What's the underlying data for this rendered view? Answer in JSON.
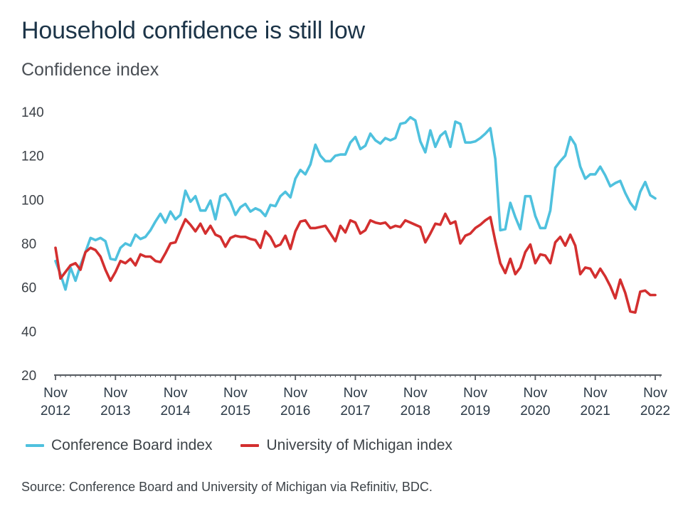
{
  "title": "Household confidence is still low",
  "subtitle": "Confidence index",
  "source": "Source: Conference Board and University of Michigan via Refinitiv, BDC.",
  "colors": {
    "conference_board": "#4fc1de",
    "michigan": "#d32f2f",
    "axis": "#555a60"
  },
  "chart_data": {
    "type": "line",
    "title": "Household confidence is still low",
    "ylabel": "Confidence index",
    "xlabel": "",
    "ylim": [
      20,
      140
    ],
    "yticks": [
      20,
      40,
      60,
      80,
      100,
      120,
      140
    ],
    "x_start": "2012-11",
    "x_end": "2022-12",
    "xtick_labels": [
      {
        "month": "Nov",
        "year": "2012"
      },
      {
        "month": "Nov",
        "year": "2013"
      },
      {
        "month": "Nov",
        "year": "2014"
      },
      {
        "month": "Nov",
        "year": "2015"
      },
      {
        "month": "Nov",
        "year": "2016"
      },
      {
        "month": "Nov",
        "year": "2017"
      },
      {
        "month": "Nov",
        "year": "2018"
      },
      {
        "month": "Nov",
        "year": "2019"
      },
      {
        "month": "Nov",
        "year": "2020"
      },
      {
        "month": "Nov",
        "year": "2021"
      },
      {
        "month": "Nov",
        "year": "2022"
      }
    ],
    "grid": false,
    "legend_position": "bottom",
    "series": [
      {
        "name": "Conference Board index",
        "color": "#4fc1de",
        "points": [
          [
            "2012-11",
            72
          ],
          [
            "2012-12",
            66
          ],
          [
            "2013-01",
            59
          ],
          [
            "2013-02",
            69
          ],
          [
            "2013-03",
            63
          ],
          [
            "2013-04",
            70
          ],
          [
            "2013-05",
            76
          ],
          [
            "2013-06",
            82.5
          ],
          [
            "2013-07",
            81.5
          ],
          [
            "2013-08",
            82.5
          ],
          [
            "2013-09",
            81
          ],
          [
            "2013-10",
            73
          ],
          [
            "2013-11",
            72.5
          ],
          [
            "2013-12",
            78
          ],
          [
            "2014-01",
            80
          ],
          [
            "2014-02",
            79
          ],
          [
            "2014-03",
            84
          ],
          [
            "2014-04",
            82
          ],
          [
            "2014-05",
            83
          ],
          [
            "2014-06",
            86
          ],
          [
            "2014-07",
            90
          ],
          [
            "2014-08",
            93.5
          ],
          [
            "2014-09",
            89.5
          ],
          [
            "2014-10",
            94.5
          ],
          [
            "2014-11",
            91
          ],
          [
            "2014-12",
            93
          ],
          [
            "2015-01",
            104
          ],
          [
            "2015-02",
            99
          ],
          [
            "2015-03",
            101.5
          ],
          [
            "2015-04",
            95
          ],
          [
            "2015-05",
            95
          ],
          [
            "2015-06",
            99.5
          ],
          [
            "2015-07",
            91
          ],
          [
            "2015-08",
            101.5
          ],
          [
            "2015-09",
            102.5
          ],
          [
            "2015-10",
            99
          ],
          [
            "2015-11",
            93
          ],
          [
            "2015-12",
            96.5
          ],
          [
            "2016-01",
            98
          ],
          [
            "2016-02",
            94.5
          ],
          [
            "2016-03",
            96
          ],
          [
            "2016-04",
            95
          ],
          [
            "2016-05",
            92.5
          ],
          [
            "2016-06",
            97.5
          ],
          [
            "2016-07",
            97
          ],
          [
            "2016-08",
            101.5
          ],
          [
            "2016-09",
            103.5
          ],
          [
            "2016-10",
            101
          ],
          [
            "2016-11",
            109.5
          ],
          [
            "2016-12",
            113.5
          ],
          [
            "2017-01",
            111.5
          ],
          [
            "2017-02",
            116
          ],
          [
            "2017-03",
            125
          ],
          [
            "2017-04",
            120
          ],
          [
            "2017-05",
            117.5
          ],
          [
            "2017-06",
            117.5
          ],
          [
            "2017-07",
            120
          ],
          [
            "2017-08",
            120.5
          ],
          [
            "2017-09",
            120.5
          ],
          [
            "2017-10",
            126
          ],
          [
            "2017-11",
            128.5
          ],
          [
            "2017-12",
            123
          ],
          [
            "2018-01",
            124.5
          ],
          [
            "2018-02",
            130
          ],
          [
            "2018-03",
            127
          ],
          [
            "2018-04",
            125.5
          ],
          [
            "2018-05",
            128
          ],
          [
            "2018-06",
            127
          ],
          [
            "2018-07",
            128
          ],
          [
            "2018-08",
            134.5
          ],
          [
            "2018-09",
            135
          ],
          [
            "2018-10",
            137.5
          ],
          [
            "2018-11",
            136
          ],
          [
            "2018-12",
            126.5
          ],
          [
            "2019-01",
            121.5
          ],
          [
            "2019-02",
            131.5
          ],
          [
            "2019-03",
            124
          ],
          [
            "2019-04",
            129
          ],
          [
            "2019-05",
            131
          ],
          [
            "2019-06",
            124
          ],
          [
            "2019-07",
            135.5
          ],
          [
            "2019-08",
            134.5
          ],
          [
            "2019-09",
            126
          ],
          [
            "2019-10",
            126
          ],
          [
            "2019-11",
            126.5
          ],
          [
            "2019-12",
            128
          ],
          [
            "2020-01",
            130
          ],
          [
            "2020-02",
            132.5
          ],
          [
            "2020-03",
            118.5
          ],
          [
            "2020-04",
            86
          ],
          [
            "2020-05",
            86.5
          ],
          [
            "2020-06",
            98.5
          ],
          [
            "2020-07",
            92
          ],
          [
            "2020-08",
            86.5
          ],
          [
            "2020-09",
            101.5
          ],
          [
            "2020-10",
            101.5
          ],
          [
            "2020-11",
            92.5
          ],
          [
            "2020-12",
            87
          ],
          [
            "2021-01",
            87
          ],
          [
            "2021-02",
            95
          ],
          [
            "2021-03",
            114.5
          ],
          [
            "2021-04",
            117.5
          ],
          [
            "2021-05",
            120
          ],
          [
            "2021-06",
            128.5
          ],
          [
            "2021-07",
            125
          ],
          [
            "2021-08",
            115
          ],
          [
            "2021-09",
            109.5
          ],
          [
            "2021-10",
            111.5
          ],
          [
            "2021-11",
            111.5
          ],
          [
            "2021-12",
            115
          ],
          [
            "2022-01",
            111
          ],
          [
            "2022-02",
            106
          ],
          [
            "2022-03",
            107.5
          ],
          [
            "2022-04",
            108.5
          ],
          [
            "2022-05",
            103
          ],
          [
            "2022-06",
            98.5
          ],
          [
            "2022-07",
            95.5
          ],
          [
            "2022-08",
            103.5
          ],
          [
            "2022-09",
            108
          ],
          [
            "2022-10",
            102
          ],
          [
            "2022-11",
            100.5
          ]
        ]
      },
      {
        "name": "University of Michigan index",
        "color": "#d32f2f",
        "points": [
          [
            "2012-11",
            78
          ],
          [
            "2012-12",
            64
          ],
          [
            "2013-01",
            67
          ],
          [
            "2013-02",
            70
          ],
          [
            "2013-03",
            71
          ],
          [
            "2013-04",
            68
          ],
          [
            "2013-05",
            76
          ],
          [
            "2013-06",
            78
          ],
          [
            "2013-07",
            77
          ],
          [
            "2013-08",
            74
          ],
          [
            "2013-09",
            68
          ],
          [
            "2013-10",
            63
          ],
          [
            "2013-11",
            67
          ],
          [
            "2013-12",
            72
          ],
          [
            "2014-01",
            71
          ],
          [
            "2014-02",
            73
          ],
          [
            "2014-03",
            70
          ],
          [
            "2014-04",
            75
          ],
          [
            "2014-05",
            74
          ],
          [
            "2014-06",
            74
          ],
          [
            "2014-07",
            72
          ],
          [
            "2014-08",
            71.5
          ],
          [
            "2014-09",
            75.5
          ],
          [
            "2014-10",
            80
          ],
          [
            "2014-11",
            80.5
          ],
          [
            "2014-12",
            86
          ],
          [
            "2015-01",
            91
          ],
          [
            "2015-02",
            88.5
          ],
          [
            "2015-03",
            85.5
          ],
          [
            "2015-04",
            89
          ],
          [
            "2015-05",
            84.5
          ],
          [
            "2015-06",
            88
          ],
          [
            "2015-07",
            84
          ],
          [
            "2015-08",
            83
          ],
          [
            "2015-09",
            78.5
          ],
          [
            "2015-10",
            82.5
          ],
          [
            "2015-11",
            83.5
          ],
          [
            "2015-12",
            83
          ],
          [
            "2016-01",
            83
          ],
          [
            "2016-02",
            82
          ],
          [
            "2016-03",
            81.5
          ],
          [
            "2016-04",
            78
          ],
          [
            "2016-05",
            85.5
          ],
          [
            "2016-06",
            83
          ],
          [
            "2016-07",
            78.5
          ],
          [
            "2016-08",
            79.5
          ],
          [
            "2016-09",
            83.5
          ],
          [
            "2016-10",
            77.5
          ],
          [
            "2016-11",
            85.5
          ],
          [
            "2016-12",
            90
          ],
          [
            "2017-01",
            90.5
          ],
          [
            "2017-02",
            87
          ],
          [
            "2017-03",
            87
          ],
          [
            "2017-04",
            87.5
          ],
          [
            "2017-05",
            88
          ],
          [
            "2017-06",
            84.5
          ],
          [
            "2017-07",
            81
          ],
          [
            "2017-08",
            88
          ],
          [
            "2017-09",
            85
          ],
          [
            "2017-10",
            90.5
          ],
          [
            "2017-11",
            89.5
          ],
          [
            "2017-12",
            84.5
          ],
          [
            "2018-01",
            86
          ],
          [
            "2018-02",
            90.5
          ],
          [
            "2018-03",
            89.5
          ],
          [
            "2018-04",
            89
          ],
          [
            "2018-05",
            89.5
          ],
          [
            "2018-06",
            87
          ],
          [
            "2018-07",
            88
          ],
          [
            "2018-08",
            87.5
          ],
          [
            "2018-09",
            90.5
          ],
          [
            "2018-10",
            89.5
          ],
          [
            "2018-11",
            88.5
          ],
          [
            "2018-12",
            87.5
          ],
          [
            "2019-01",
            80.5
          ],
          [
            "2019-02",
            84.5
          ],
          [
            "2019-03",
            89
          ],
          [
            "2019-04",
            88.5
          ],
          [
            "2019-05",
            93.5
          ],
          [
            "2019-06",
            89
          ],
          [
            "2019-07",
            90
          ],
          [
            "2019-08",
            80
          ],
          [
            "2019-09",
            83.5
          ],
          [
            "2019-10",
            84.5
          ],
          [
            "2019-11",
            87
          ],
          [
            "2019-12",
            88.5
          ],
          [
            "2020-01",
            90.5
          ],
          [
            "2020-02",
            92
          ],
          [
            "2020-03",
            81
          ],
          [
            "2020-04",
            71
          ],
          [
            "2020-05",
            66.5
          ],
          [
            "2020-06",
            73
          ],
          [
            "2020-07",
            66
          ],
          [
            "2020-08",
            69
          ],
          [
            "2020-09",
            76
          ],
          [
            "2020-10",
            79.5
          ],
          [
            "2020-11",
            71
          ],
          [
            "2020-12",
            75
          ],
          [
            "2021-01",
            74.5
          ],
          [
            "2021-02",
            71
          ],
          [
            "2021-03",
            80.5
          ],
          [
            "2021-04",
            83
          ],
          [
            "2021-05",
            79
          ],
          [
            "2021-06",
            84
          ],
          [
            "2021-07",
            79
          ],
          [
            "2021-08",
            66
          ],
          [
            "2021-09",
            69
          ],
          [
            "2021-10",
            68.5
          ],
          [
            "2021-11",
            64.5
          ],
          [
            "2021-12",
            68.5
          ],
          [
            "2022-01",
            65
          ],
          [
            "2022-02",
            60.5
          ],
          [
            "2022-03",
            55
          ],
          [
            "2022-04",
            63.5
          ],
          [
            "2022-05",
            57.5
          ],
          [
            "2022-06",
            49
          ],
          [
            "2022-07",
            48.5
          ],
          [
            "2022-08",
            58
          ],
          [
            "2022-09",
            58.5
          ],
          [
            "2022-10",
            56.5
          ],
          [
            "2022-11",
            56.5
          ]
        ]
      }
    ]
  }
}
